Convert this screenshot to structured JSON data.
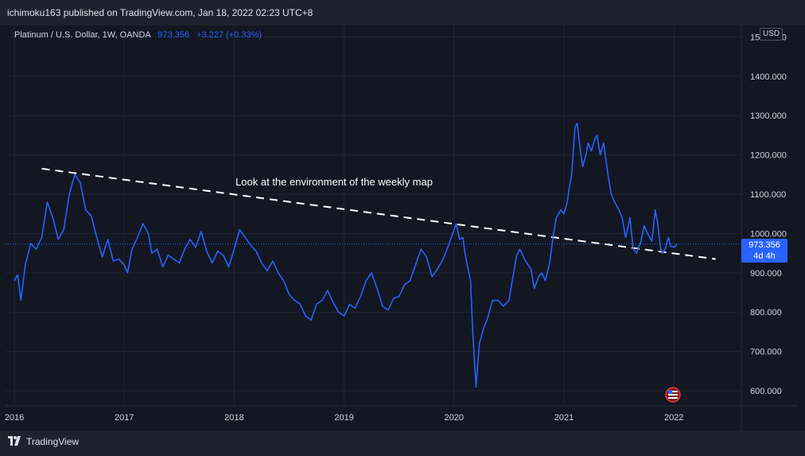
{
  "header": {
    "publisher_text": "ichimoku163 published on TradingView.com, Jan 18, 2022 02:23 UTC+8"
  },
  "legend": {
    "symbol": "Platinum / U.S. Dollar, 1W, OANDA",
    "last_value": "973.356",
    "change": "+3.227 (+0.33%)"
  },
  "currency_badge": "USD",
  "last_price_tag": {
    "price": "973.356",
    "countdown": "4d 4h"
  },
  "footer": {
    "brand": "TradingView"
  },
  "colors": {
    "background": "#131722",
    "line": "#2962ff",
    "grid": "#1f2433",
    "annotation": "#ffffff"
  },
  "chart_data": {
    "type": "line",
    "x_ticks": [
      "2016",
      "2017",
      "2018",
      "2019",
      "2020",
      "2021",
      "2022"
    ],
    "y_ticks": [
      "1500.000",
      "1400.000",
      "1300.000",
      "1200.000",
      "1100.000",
      "1000.000",
      "900.000",
      "800.000",
      "700.000",
      "600.000"
    ],
    "ylim": [
      600,
      1500
    ],
    "xlim": [
      2016.0,
      2022.6
    ],
    "annotation_text": "Look at the environment of the weekly map",
    "trendline": {
      "style": "dashed",
      "color": "#ffffff",
      "start": [
        2016.25,
        1165
      ],
      "end": [
        2022.38,
        935
      ]
    },
    "last_price_line": 973.356,
    "series": [
      {
        "values": [
          [
            2016.0,
            880
          ],
          [
            2016.03,
            895
          ],
          [
            2016.06,
            830
          ],
          [
            2016.1,
            920
          ],
          [
            2016.15,
            975
          ],
          [
            2016.2,
            960
          ],
          [
            2016.25,
            990
          ],
          [
            2016.3,
            1080
          ],
          [
            2016.35,
            1040
          ],
          [
            2016.4,
            985
          ],
          [
            2016.45,
            1010
          ],
          [
            2016.5,
            1100
          ],
          [
            2016.55,
            1150
          ],
          [
            2016.6,
            1130
          ],
          [
            2016.65,
            1060
          ],
          [
            2016.7,
            1045
          ],
          [
            2016.75,
            990
          ],
          [
            2016.8,
            940
          ],
          [
            2016.85,
            985
          ],
          [
            2016.9,
            930
          ],
          [
            2016.95,
            935
          ],
          [
            2017.0,
            920
          ],
          [
            2017.03,
            900
          ],
          [
            2017.07,
            960
          ],
          [
            2017.12,
            990
          ],
          [
            2017.17,
            1025
          ],
          [
            2017.22,
            1000
          ],
          [
            2017.25,
            950
          ],
          [
            2017.3,
            960
          ],
          [
            2017.35,
            915
          ],
          [
            2017.4,
            945
          ],
          [
            2017.45,
            935
          ],
          [
            2017.5,
            925
          ],
          [
            2017.55,
            960
          ],
          [
            2017.6,
            985
          ],
          [
            2017.65,
            965
          ],
          [
            2017.7,
            1005
          ],
          [
            2017.75,
            955
          ],
          [
            2017.8,
            925
          ],
          [
            2017.85,
            955
          ],
          [
            2017.9,
            945
          ],
          [
            2017.95,
            915
          ],
          [
            2018.0,
            960
          ],
          [
            2018.05,
            1010
          ],
          [
            2018.1,
            990
          ],
          [
            2018.15,
            970
          ],
          [
            2018.2,
            955
          ],
          [
            2018.25,
            925
          ],
          [
            2018.3,
            905
          ],
          [
            2018.35,
            930
          ],
          [
            2018.4,
            900
          ],
          [
            2018.45,
            880
          ],
          [
            2018.5,
            845
          ],
          [
            2018.55,
            830
          ],
          [
            2018.6,
            820
          ],
          [
            2018.65,
            790
          ],
          [
            2018.7,
            780
          ],
          [
            2018.75,
            820
          ],
          [
            2018.8,
            830
          ],
          [
            2018.85,
            855
          ],
          [
            2018.9,
            825
          ],
          [
            2018.95,
            800
          ],
          [
            2019.0,
            790
          ],
          [
            2019.05,
            820
          ],
          [
            2019.1,
            810
          ],
          [
            2019.15,
            840
          ],
          [
            2019.2,
            880
          ],
          [
            2019.25,
            900
          ],
          [
            2019.3,
            860
          ],
          [
            2019.35,
            815
          ],
          [
            2019.4,
            805
          ],
          [
            2019.45,
            835
          ],
          [
            2019.5,
            840
          ],
          [
            2019.55,
            870
          ],
          [
            2019.6,
            880
          ],
          [
            2019.65,
            920
          ],
          [
            2019.7,
            960
          ],
          [
            2019.75,
            940
          ],
          [
            2019.8,
            890
          ],
          [
            2019.85,
            910
          ],
          [
            2019.9,
            935
          ],
          [
            2019.95,
            970
          ],
          [
            2020.0,
            1010
          ],
          [
            2020.02,
            1025
          ],
          [
            2020.05,
            985
          ],
          [
            2020.08,
            990
          ],
          [
            2020.1,
            950
          ],
          [
            2020.12,
            920
          ],
          [
            2020.15,
            880
          ],
          [
            2020.17,
            750
          ],
          [
            2020.2,
            610
          ],
          [
            2020.23,
            720
          ],
          [
            2020.27,
            760
          ],
          [
            2020.3,
            780
          ],
          [
            2020.35,
            830
          ],
          [
            2020.4,
            830
          ],
          [
            2020.45,
            815
          ],
          [
            2020.5,
            830
          ],
          [
            2020.53,
            880
          ],
          [
            2020.57,
            945
          ],
          [
            2020.6,
            960
          ],
          [
            2020.65,
            930
          ],
          [
            2020.7,
            910
          ],
          [
            2020.73,
            860
          ],
          [
            2020.77,
            890
          ],
          [
            2020.8,
            900
          ],
          [
            2020.83,
            880
          ],
          [
            2020.87,
            925
          ],
          [
            2020.9,
            990
          ],
          [
            2020.93,
            1040
          ],
          [
            2020.97,
            1060
          ],
          [
            2021.0,
            1050
          ],
          [
            2021.03,
            1080
          ],
          [
            2021.05,
            1120
          ],
          [
            2021.07,
            1150
          ],
          [
            2021.1,
            1270
          ],
          [
            2021.12,
            1280
          ],
          [
            2021.15,
            1210
          ],
          [
            2021.17,
            1170
          ],
          [
            2021.2,
            1200
          ],
          [
            2021.22,
            1230
          ],
          [
            2021.25,
            1210
          ],
          [
            2021.28,
            1240
          ],
          [
            2021.3,
            1250
          ],
          [
            2021.33,
            1200
          ],
          [
            2021.36,
            1230
          ],
          [
            2021.4,
            1150
          ],
          [
            2021.43,
            1100
          ],
          [
            2021.46,
            1080
          ],
          [
            2021.5,
            1060
          ],
          [
            2021.53,
            1040
          ],
          [
            2021.56,
            990
          ],
          [
            2021.6,
            1040
          ],
          [
            2021.63,
            960
          ],
          [
            2021.66,
            950
          ],
          [
            2021.7,
            980
          ],
          [
            2021.73,
            1020
          ],
          [
            2021.76,
            1000
          ],
          [
            2021.8,
            980
          ],
          [
            2021.83,
            1060
          ],
          [
            2021.85,
            1030
          ],
          [
            2021.88,
            960
          ],
          [
            2021.9,
            950
          ],
          [
            2021.92,
            960
          ],
          [
            2021.95,
            990
          ],
          [
            2021.97,
            968
          ],
          [
            2022.0,
            965
          ],
          [
            2022.03,
            973
          ]
        ]
      }
    ]
  }
}
